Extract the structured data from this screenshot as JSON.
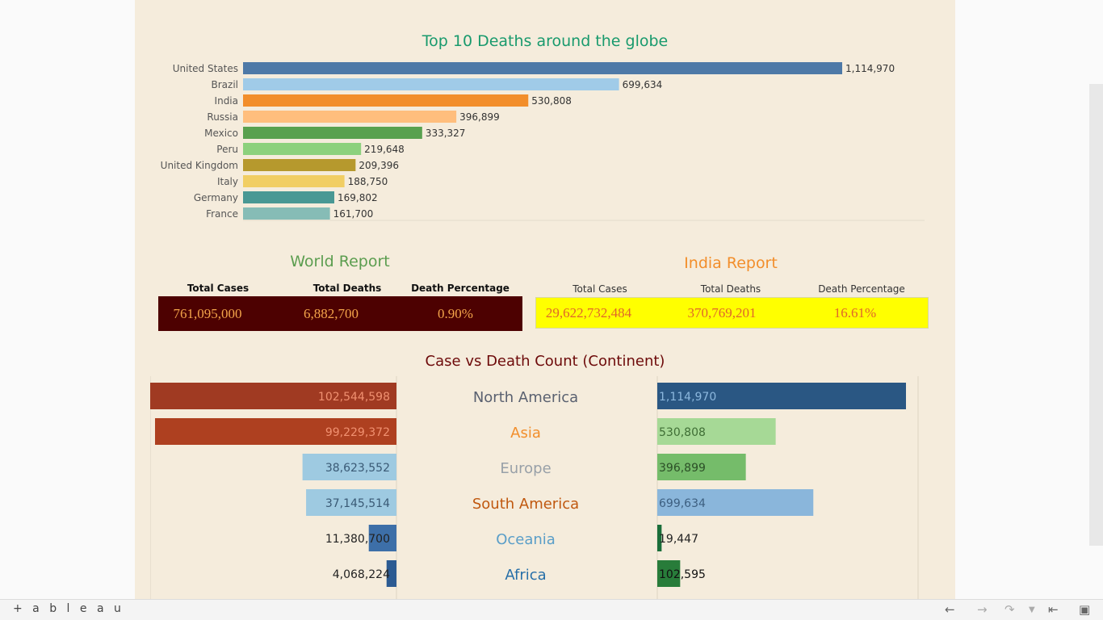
{
  "top10": {
    "title": "Top 10 Deaths around the globe",
    "labels": [
      "1,114,970",
      "699,634",
      "530,808",
      "396,899",
      "333,327",
      "219,648",
      "209,396",
      "188,750",
      "169,802",
      "161,700"
    ]
  },
  "world_report": {
    "title": "World Report",
    "headers": [
      "Total Cases",
      "Total Deaths",
      "Death Percentage"
    ],
    "values": [
      "761,095,000",
      "6,882,700",
      "0.90%"
    ],
    "background": "#4d0101",
    "text_color": "#f3a44a"
  },
  "india_report": {
    "title": "India Report",
    "headers": [
      "Total Cases",
      "Total Deaths",
      "Death Percentage"
    ],
    "values": [
      "29,622,732,484",
      "370,769,201",
      "16.61%"
    ],
    "background": "#ffff00",
    "text_color": "#e0662a"
  },
  "continent": {
    "title": "Case vs Death Count (Continent)"
  },
  "chart_data": [
    {
      "type": "bar",
      "title": "Top 10 Deaths around the globe",
      "categories": [
        "United States",
        "Brazil",
        "India",
        "Russia",
        "Mexico",
        "Peru",
        "United Kingdom",
        "Italy",
        "Germany",
        "France"
      ],
      "values": [
        1114970,
        699634,
        530808,
        396899,
        333327,
        219648,
        209396,
        188750,
        169802,
        161700
      ],
      "colors": [
        "#4e79a7",
        "#a0cbe8",
        "#f28e2b",
        "#ffbe7d",
        "#59a14f",
        "#8cd17d",
        "#b6992d",
        "#f1ce63",
        "#499894",
        "#86bcb6"
      ],
      "orientation": "horizontal",
      "xlim": [
        0,
        1140000
      ],
      "grid": false
    },
    {
      "type": "bar",
      "title": "Case vs Death Count (Continent)",
      "categories": [
        "North America",
        "Asia",
        "Europe",
        "South America",
        "Oceania",
        "Africa"
      ],
      "category_colors": [
        "#5a6170",
        "#f28e2b",
        "#98a0a8",
        "#c0580f",
        "#5a9ec8",
        "#276fa8"
      ],
      "series": [
        {
          "values": [
            102544598,
            99229372,
            38623552,
            37145514,
            11380700,
            4068224
          ],
          "colors": [
            "#a03a22",
            "#ae4020",
            "#9ecae1",
            "#9ecae1",
            "#3d6fa8",
            "#2c5b92"
          ],
          "label_colors": [
            "#f09070",
            "#f09070",
            "#3a5a75",
            "#3a5a75",
            "#222222",
            "#222222"
          ]
        },
        {
          "values": [
            1114970,
            530808,
            396899,
            699634,
            19447,
            102595
          ],
          "colors": [
            "#2a5783",
            "#a6d996",
            "#75bc6a",
            "#8ab6db",
            "#1a6e3a",
            "#287c3a"
          ],
          "label_colors": [
            "#8cb8de",
            "#3f6e35",
            "#2c4f27",
            "#3d5f80",
            "#222222",
            "#111111"
          ]
        }
      ],
      "grid": false
    }
  ],
  "footer": {
    "logo": "+ a b l e a u"
  }
}
